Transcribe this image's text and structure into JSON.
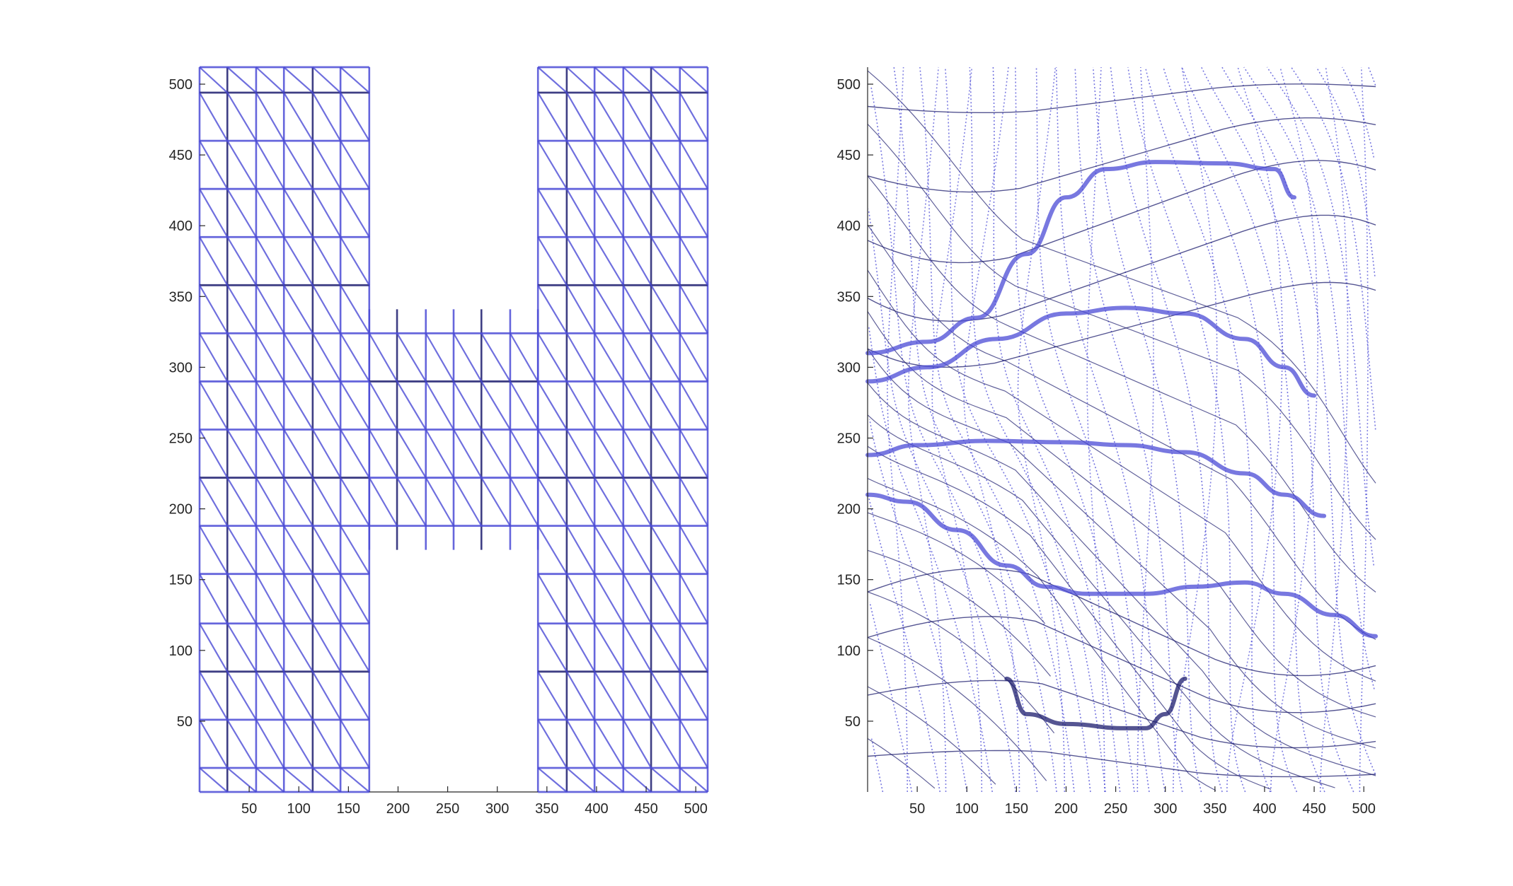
{
  "chart_data": [
    {
      "type": "mesh",
      "panel": "left",
      "title": "",
      "xlabel": "",
      "ylabel": "",
      "xlim": [
        0,
        512
      ],
      "ylim": [
        0,
        512
      ],
      "xticks": [
        50,
        100,
        150,
        200,
        250,
        300,
        350,
        400,
        450,
        500
      ],
      "yticks": [
        50,
        100,
        150,
        200,
        250,
        300,
        350,
        400,
        450,
        500
      ],
      "shape": "H",
      "regions": [
        {
          "name": "left-column",
          "x": [
            0,
            171
          ],
          "y": [
            0,
            512
          ]
        },
        {
          "name": "crossbar",
          "x": [
            171,
            341
          ],
          "y": [
            171,
            341
          ]
        },
        {
          "name": "right-column",
          "x": [
            341,
            512
          ],
          "y": [
            0,
            512
          ]
        }
      ],
      "grid_vertical_x": [
        0,
        28,
        57,
        85,
        114,
        142,
        171,
        341,
        370,
        398,
        427,
        455,
        484,
        512
      ],
      "crossbar_vertical_x": [
        171,
        199,
        228,
        256,
        284,
        313,
        341
      ],
      "grid_horizontal_y": [
        0,
        17,
        51,
        85,
        119,
        154,
        188,
        222,
        256,
        290,
        324,
        358,
        392,
        426,
        460,
        494,
        512
      ],
      "line_color": "#4b4bd6",
      "dark_line_color": "#1c1c6e"
    },
    {
      "type": "mesh",
      "panel": "right",
      "title": "",
      "xlabel": "",
      "ylabel": "",
      "xlim": [
        0,
        512
      ],
      "ylim": [
        0,
        512
      ],
      "xticks": [
        50,
        100,
        150,
        200,
        250,
        300,
        350,
        400,
        450,
        500
      ],
      "yticks": [
        50,
        100,
        150,
        200,
        250,
        300,
        350,
        400,
        450,
        500
      ],
      "deformed": true,
      "thick_curves": [
        [
          [
            0,
            290
          ],
          [
            60,
            300
          ],
          [
            130,
            320
          ],
          [
            200,
            338
          ],
          [
            260,
            342
          ],
          [
            320,
            338
          ],
          [
            380,
            320
          ],
          [
            420,
            300
          ],
          [
            450,
            280
          ]
        ],
        [
          [
            0,
            238
          ],
          [
            50,
            245
          ],
          [
            120,
            248
          ],
          [
            200,
            247
          ],
          [
            260,
            245
          ],
          [
            320,
            240
          ],
          [
            380,
            225
          ],
          [
            420,
            210
          ],
          [
            460,
            195
          ]
        ],
        [
          [
            0,
            210
          ],
          [
            40,
            205
          ],
          [
            90,
            185
          ],
          [
            140,
            160
          ],
          [
            180,
            145
          ],
          [
            220,
            140
          ],
          [
            280,
            140
          ],
          [
            330,
            145
          ],
          [
            380,
            148
          ],
          [
            420,
            140
          ],
          [
            470,
            125
          ],
          [
            512,
            110
          ]
        ],
        [
          [
            0,
            310
          ],
          [
            60,
            318
          ],
          [
            110,
            335
          ],
          [
            160,
            380
          ],
          [
            200,
            420
          ],
          [
            240,
            440
          ],
          [
            290,
            445
          ],
          [
            360,
            444
          ],
          [
            410,
            440
          ],
          [
            430,
            420
          ]
        ],
        [
          [
            140,
            80
          ],
          [
            160,
            55
          ],
          [
            200,
            48
          ],
          [
            260,
            45
          ],
          [
            280,
            45
          ],
          [
            300,
            55
          ],
          [
            320,
            80
          ]
        ]
      ],
      "line_color": "#4b4bd6",
      "dark_line_color": "#1c1c6e"
    }
  ]
}
